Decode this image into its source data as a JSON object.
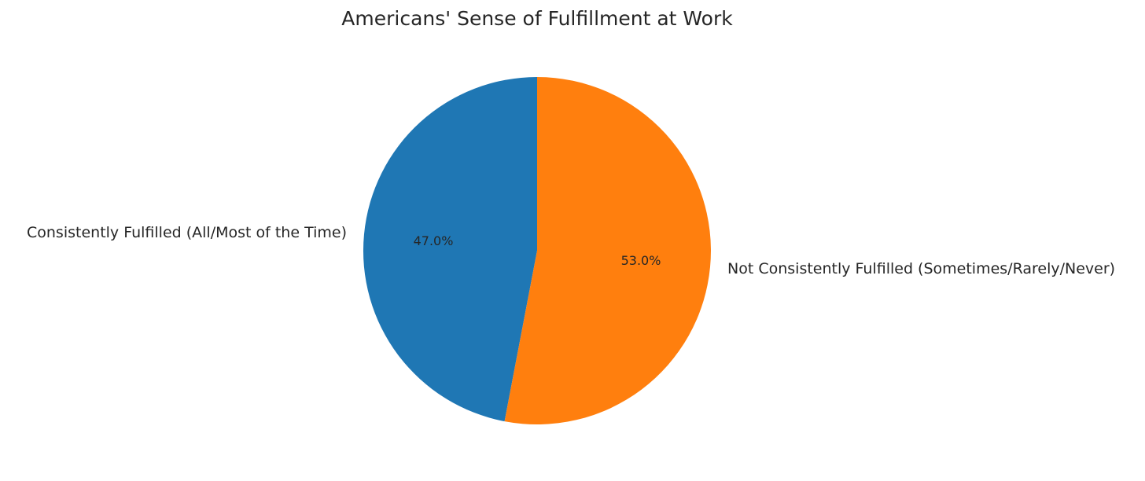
{
  "chart_data": {
    "type": "pie",
    "title": "Americans' Sense of Fulfillment at Work",
    "start_angle_deg": 90,
    "direction": "counterclockwise",
    "slices": [
      {
        "label": "Consistently Fulfilled (All/Most of the Time)",
        "value": 47.0,
        "pct_label": "47.0%",
        "color": "#1f77b4"
      },
      {
        "label": "Not Consistently Fulfilled (Sometimes/Rarely/Never)",
        "value": 53.0,
        "pct_label": "53.0%",
        "color": "#ff7f0e"
      }
    ]
  }
}
